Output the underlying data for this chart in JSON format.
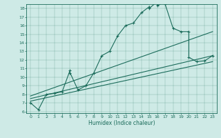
{
  "xlabel": "Humidex (Indice chaleur)",
  "bg_color": "#ceeae6",
  "line_color": "#1a6b5a",
  "ylim": [
    5.8,
    18.5
  ],
  "xlim": [
    -0.5,
    23.5
  ],
  "yticks": [
    6,
    7,
    8,
    9,
    10,
    11,
    12,
    13,
    14,
    15,
    16,
    17,
    18
  ],
  "xticks": [
    0,
    1,
    2,
    3,
    4,
    5,
    6,
    7,
    8,
    9,
    10,
    11,
    12,
    13,
    14,
    15,
    16,
    17,
    18,
    19,
    20,
    21,
    22,
    23
  ],
  "main_x": [
    0,
    1,
    2,
    3,
    4,
    5,
    5,
    6,
    7,
    8,
    9,
    10,
    11,
    12,
    13,
    14,
    15,
    15,
    16,
    16,
    17,
    17,
    18,
    19,
    20,
    20,
    21,
    22,
    23
  ],
  "main_y": [
    7.0,
    6.2,
    8.0,
    8.1,
    8.3,
    10.8,
    10.5,
    8.5,
    9.0,
    10.5,
    12.5,
    13.0,
    14.8,
    16.0,
    16.3,
    17.5,
    18.2,
    18.0,
    18.8,
    18.3,
    18.8,
    18.5,
    15.7,
    15.3,
    15.3,
    12.3,
    11.8,
    11.9,
    12.5
  ],
  "line1_x": [
    0,
    23
  ],
  "line1_y": [
    7.8,
    15.3
  ],
  "line2_x": [
    0,
    23
  ],
  "line2_y": [
    7.5,
    12.5
  ],
  "line3_x": [
    0,
    23
  ],
  "line3_y": [
    7.2,
    11.8
  ]
}
